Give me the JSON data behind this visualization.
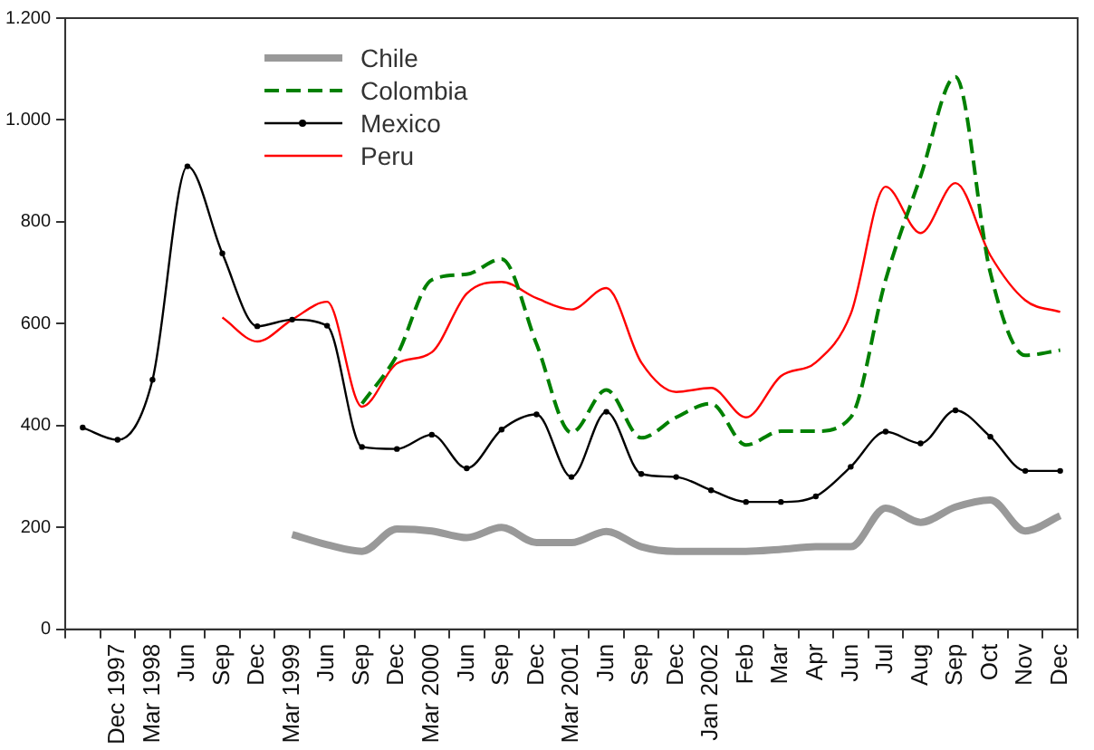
{
  "chart_data": {
    "type": "line",
    "categories": [
      null,
      "Dec 1997",
      "Mar 1998",
      "Jun",
      "Sep",
      "Dec",
      "Mar 1999",
      "Jun",
      "Sep",
      "Dec",
      "Mar 2000",
      "Jun",
      "Sep",
      "Dec",
      "Mar 2001",
      "Jun",
      "Sep",
      "Dec",
      "Jan 2002",
      "Feb",
      "Mar",
      "Apr",
      "Jun",
      "Jul",
      "Aug",
      "Sep",
      "Oct",
      "Nov",
      "Dec"
    ],
    "series": [
      {
        "name": "Chile",
        "color": "#999999",
        "line_style": "solid",
        "marker": "none",
        "values": [
          null,
          null,
          null,
          null,
          null,
          null,
          186,
          166,
          153,
          197,
          193,
          180,
          200,
          170,
          170,
          192,
          162,
          153,
          153,
          153,
          157,
          162,
          162,
          238,
          210,
          240,
          254,
          193,
          223
        ]
      },
      {
        "name": "Colombia",
        "color": "#008000",
        "line_style": "dashed",
        "marker": "none",
        "values": [
          null,
          null,
          null,
          null,
          null,
          null,
          null,
          null,
          443,
          538,
          686,
          697,
          727,
          560,
          386,
          470,
          376,
          416,
          443,
          362,
          389,
          389,
          416,
          686,
          889,
          1085,
          700,
          538,
          548
        ]
      },
      {
        "name": "Mexico",
        "color": "#000000",
        "line_style": "solid",
        "marker": "circle",
        "values": [
          396,
          372,
          490,
          909,
          738,
          595,
          608,
          596,
          358,
          354,
          382,
          316,
          392,
          422,
          299,
          427,
          305,
          299,
          273,
          250,
          250,
          261,
          319,
          388,
          365,
          430,
          378,
          311,
          311
        ]
      },
      {
        "name": "Peru",
        "color": "#ff0000",
        "line_style": "solid",
        "marker": "none",
        "values": [
          null,
          null,
          null,
          null,
          612,
          565,
          608,
          643,
          437,
          522,
          544,
          659,
          682,
          650,
          628,
          670,
          524,
          466,
          474,
          416,
          497,
          524,
          619,
          869,
          778,
          876,
          734,
          646,
          623
        ]
      }
    ],
    "ylim": [
      0,
      1200
    ],
    "yticks": [
      0,
      200,
      400,
      600,
      800,
      {
        "value": 1000,
        "label": "1.000"
      },
      {
        "value": 1200,
        "label": "1.200"
      }
    ],
    "grid": false,
    "legend": "top left"
  }
}
